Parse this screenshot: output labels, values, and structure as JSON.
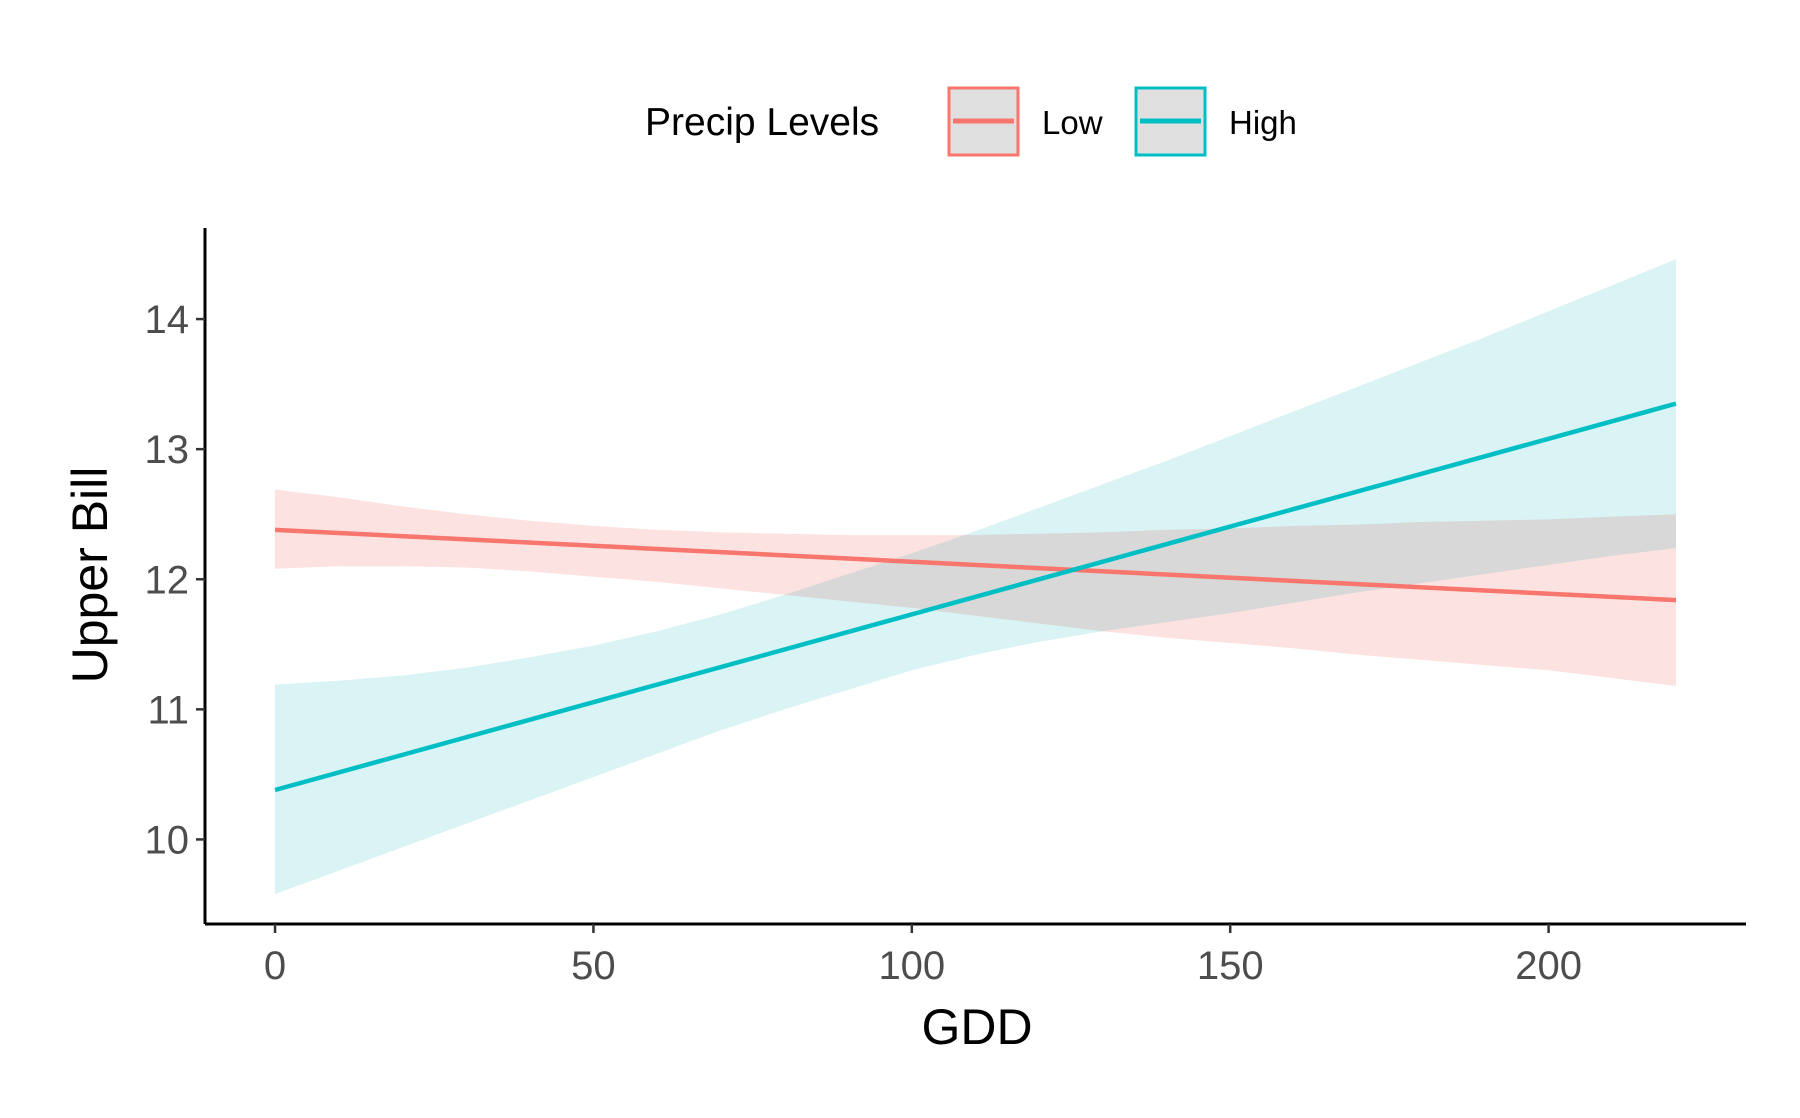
{
  "chart_data": {
    "type": "line",
    "title": "",
    "xlabel": "GDD",
    "ylabel": "Upper Bill",
    "xlim": [
      -11,
      231
    ],
    "ylim": [
      9.35,
      14.7
    ],
    "xticks": [
      0,
      50,
      100,
      150,
      200
    ],
    "xtick_labels": [
      "0",
      "50",
      "100",
      "150",
      "200"
    ],
    "yticks": [
      10,
      11,
      12,
      13,
      14
    ],
    "ytick_labels": [
      "10",
      "11",
      "12",
      "13",
      "14"
    ],
    "grid": false,
    "legend": {
      "title": "Precip Levels",
      "position": "top",
      "entries": [
        "Low",
        "High"
      ]
    },
    "series": [
      {
        "name": "Low",
        "color": "#F8766D",
        "fill": "#FCE3E1",
        "x": [
          0,
          220
        ],
        "y": [
          12.38,
          11.84
        ],
        "band": {
          "x": [
            0,
            10,
            20,
            30,
            40,
            50,
            60,
            70,
            80,
            90,
            100,
            110,
            120,
            130,
            140,
            150,
            160,
            170,
            180,
            190,
            200,
            210,
            220
          ],
          "lower": [
            12.08,
            12.1,
            12.1,
            12.09,
            12.06,
            12.02,
            11.98,
            11.93,
            11.88,
            11.83,
            11.78,
            11.72,
            11.66,
            11.6,
            11.55,
            11.51,
            11.47,
            11.42,
            11.38,
            11.34,
            11.3,
            11.24,
            11.18
          ],
          "upper": [
            12.69,
            12.63,
            12.56,
            12.5,
            12.45,
            12.41,
            12.38,
            12.36,
            12.35,
            12.34,
            12.34,
            12.34,
            12.35,
            12.36,
            12.38,
            12.39,
            12.41,
            12.42,
            12.44,
            12.45,
            12.46,
            12.48,
            12.5
          ]
        }
      },
      {
        "name": "High",
        "color": "#00BFC4",
        "fill": "#DAF3F4",
        "x": [
          0,
          220
        ],
        "y": [
          10.38,
          13.35
        ],
        "band": {
          "x": [
            0,
            10,
            20,
            30,
            40,
            50,
            60,
            70,
            80,
            90,
            100,
            110,
            120,
            130,
            140,
            150,
            160,
            170,
            180,
            190,
            200,
            210,
            220
          ],
          "lower": [
            9.58,
            9.76,
            9.94,
            10.12,
            10.3,
            10.48,
            10.66,
            10.84,
            11.0,
            11.15,
            11.3,
            11.42,
            11.52,
            11.6,
            11.67,
            11.74,
            11.82,
            11.9,
            11.97,
            12.04,
            12.11,
            12.18,
            12.24
          ],
          "upper": [
            11.19,
            11.22,
            11.26,
            11.32,
            11.4,
            11.49,
            11.6,
            11.73,
            11.88,
            12.04,
            12.2,
            12.37,
            12.55,
            12.73,
            12.91,
            13.1,
            13.29,
            13.48,
            13.67,
            13.86,
            14.06,
            14.26,
            14.46
          ]
        }
      }
    ]
  }
}
